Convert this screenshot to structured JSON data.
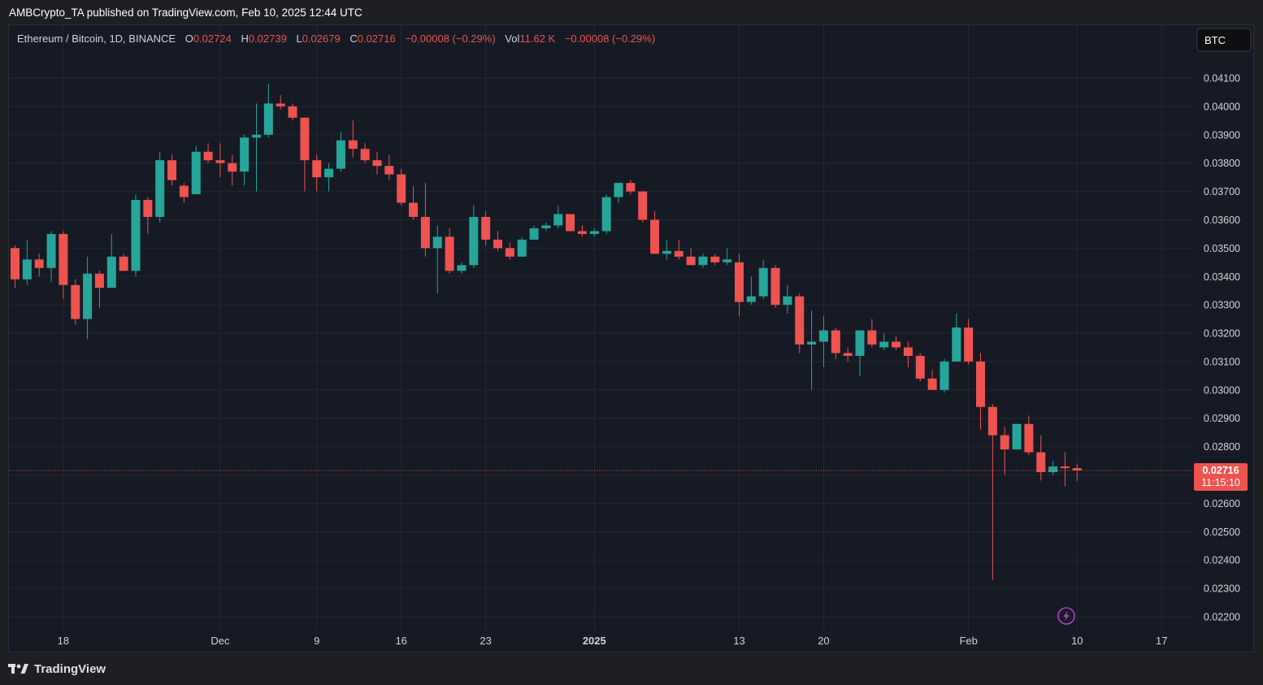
{
  "header": {
    "published": "AMBCrypto_TA published on TradingView.com, Feb 10, 2025 12:44 UTC"
  },
  "legend": {
    "symbol": "Ethereum / Bitcoin, 1D, BINANCE",
    "o_label": "O",
    "o_value": "0.02724",
    "h_label": "H",
    "h_value": "0.02739",
    "l_label": "L",
    "l_value": "0.02679",
    "c_label": "C",
    "c_value": "0.02716",
    "change": "−0.00008 (−0.29%)",
    "vol_label": "Vol",
    "vol_value": "11.62 K",
    "vol_change": "−0.00008 (−0.29%)"
  },
  "currency_button": "BTC",
  "price_label": {
    "price": "0.02716",
    "countdown": "11:15:10"
  },
  "footer": {
    "brand": "TradingView"
  },
  "colors": {
    "up": "#26a69a",
    "down": "#ef5350",
    "background": "#161a25",
    "grid": "#242834",
    "axis_text": "#d1d4dc",
    "alert_icon": "#b03fce"
  },
  "chart_data": {
    "type": "candlestick",
    "title": "Ethereum / Bitcoin, 1D, BINANCE",
    "ylim": [
      0.0218,
      0.042
    ],
    "y_ticks": [
      "0.02200",
      "0.02300",
      "0.02400",
      "0.02500",
      "0.02600",
      "0.02700",
      "0.02800",
      "0.02900",
      "0.03000",
      "0.03100",
      "0.03200",
      "0.03300",
      "0.03400",
      "0.03500",
      "0.03600",
      "0.03700",
      "0.03800",
      "0.03900",
      "0.04000",
      "0.04100"
    ],
    "x_ticks": [
      {
        "label": "18",
        "date": "2024-11-18"
      },
      {
        "label": "Dec",
        "date": "2024-12-01"
      },
      {
        "label": "9",
        "date": "2024-12-09"
      },
      {
        "label": "16",
        "date": "2024-12-16"
      },
      {
        "label": "23",
        "date": "2024-12-23"
      },
      {
        "label": "2025",
        "date": "2025-01-01"
      },
      {
        "label": "13",
        "date": "2025-01-13"
      },
      {
        "label": "20",
        "date": "2025-01-20"
      },
      {
        "label": "Feb",
        "date": "2025-02-01"
      },
      {
        "label": "10",
        "date": "2025-02-10"
      },
      {
        "label": "17",
        "date": "2025-02-17"
      }
    ],
    "x_range": [
      "2024-11-14",
      "2025-02-24"
    ],
    "last_price": 0.02716,
    "candles": [
      {
        "date": "2024-11-14",
        "o": 0.035,
        "h": 0.0351,
        "l": 0.0336,
        "c": 0.0339
      },
      {
        "date": "2024-11-15",
        "o": 0.0339,
        "h": 0.0353,
        "l": 0.0337,
        "c": 0.0346
      },
      {
        "date": "2024-11-16",
        "o": 0.0346,
        "h": 0.0348,
        "l": 0.034,
        "c": 0.0343
      },
      {
        "date": "2024-11-17",
        "o": 0.0343,
        "h": 0.0356,
        "l": 0.0338,
        "c": 0.0355
      },
      {
        "date": "2024-11-18",
        "o": 0.0355,
        "h": 0.0356,
        "l": 0.0332,
        "c": 0.0337
      },
      {
        "date": "2024-11-19",
        "o": 0.0337,
        "h": 0.0339,
        "l": 0.0323,
        "c": 0.0325
      },
      {
        "date": "2024-11-20",
        "o": 0.0325,
        "h": 0.0347,
        "l": 0.0318,
        "c": 0.0341
      },
      {
        "date": "2024-11-21",
        "o": 0.0341,
        "h": 0.0342,
        "l": 0.0329,
        "c": 0.0336
      },
      {
        "date": "2024-11-22",
        "o": 0.0336,
        "h": 0.0355,
        "l": 0.0336,
        "c": 0.0347
      },
      {
        "date": "2024-11-23",
        "o": 0.0347,
        "h": 0.0348,
        "l": 0.0342,
        "c": 0.0342
      },
      {
        "date": "2024-11-24",
        "o": 0.0342,
        "h": 0.0369,
        "l": 0.034,
        "c": 0.0367
      },
      {
        "date": "2024-11-25",
        "o": 0.0367,
        "h": 0.0368,
        "l": 0.0355,
        "c": 0.0361
      },
      {
        "date": "2024-11-26",
        "o": 0.0361,
        "h": 0.0384,
        "l": 0.0359,
        "c": 0.0381
      },
      {
        "date": "2024-11-27",
        "o": 0.0381,
        "h": 0.0383,
        "l": 0.0372,
        "c": 0.0374
      },
      {
        "date": "2024-11-28",
        "o": 0.0372,
        "h": 0.0373,
        "l": 0.0366,
        "c": 0.0368
      },
      {
        "date": "2024-11-29",
        "o": 0.0369,
        "h": 0.0386,
        "l": 0.0369,
        "c": 0.0384
      },
      {
        "date": "2024-11-30",
        "o": 0.0384,
        "h": 0.0387,
        "l": 0.038,
        "c": 0.0381
      },
      {
        "date": "2024-12-01",
        "o": 0.0381,
        "h": 0.0387,
        "l": 0.0375,
        "c": 0.038
      },
      {
        "date": "2024-12-02",
        "o": 0.038,
        "h": 0.0383,
        "l": 0.0372,
        "c": 0.0377
      },
      {
        "date": "2024-12-03",
        "o": 0.0377,
        "h": 0.039,
        "l": 0.0372,
        "c": 0.0389
      },
      {
        "date": "2024-12-04",
        "o": 0.0389,
        "h": 0.0401,
        "l": 0.037,
        "c": 0.039
      },
      {
        "date": "2024-12-05",
        "o": 0.039,
        "h": 0.0408,
        "l": 0.0389,
        "c": 0.0401
      },
      {
        "date": "2024-12-06",
        "o": 0.0401,
        "h": 0.0404,
        "l": 0.0399,
        "c": 0.04
      },
      {
        "date": "2024-12-07",
        "o": 0.04,
        "h": 0.0401,
        "l": 0.0395,
        "c": 0.0396
      },
      {
        "date": "2024-12-08",
        "o": 0.0396,
        "h": 0.0396,
        "l": 0.037,
        "c": 0.0381
      },
      {
        "date": "2024-12-09",
        "o": 0.0381,
        "h": 0.0383,
        "l": 0.037,
        "c": 0.0375
      },
      {
        "date": "2024-12-10",
        "o": 0.0375,
        "h": 0.038,
        "l": 0.037,
        "c": 0.0378
      },
      {
        "date": "2024-12-11",
        "o": 0.0378,
        "h": 0.0391,
        "l": 0.0377,
        "c": 0.0388
      },
      {
        "date": "2024-12-12",
        "o": 0.0388,
        "h": 0.0395,
        "l": 0.0382,
        "c": 0.0385
      },
      {
        "date": "2024-12-13",
        "o": 0.0385,
        "h": 0.0387,
        "l": 0.038,
        "c": 0.0381
      },
      {
        "date": "2024-12-14",
        "o": 0.0381,
        "h": 0.0384,
        "l": 0.0376,
        "c": 0.0379
      },
      {
        "date": "2024-12-15",
        "o": 0.0379,
        "h": 0.0383,
        "l": 0.0374,
        "c": 0.0376
      },
      {
        "date": "2024-12-16",
        "o": 0.0376,
        "h": 0.0378,
        "l": 0.0365,
        "c": 0.0366
      },
      {
        "date": "2024-12-17",
        "o": 0.0366,
        "h": 0.0372,
        "l": 0.036,
        "c": 0.0361
      },
      {
        "date": "2024-12-18",
        "o": 0.0361,
        "h": 0.0373,
        "l": 0.0347,
        "c": 0.035
      },
      {
        "date": "2024-12-19",
        "o": 0.035,
        "h": 0.0358,
        "l": 0.0334,
        "c": 0.0354
      },
      {
        "date": "2024-12-20",
        "o": 0.0354,
        "h": 0.0357,
        "l": 0.0341,
        "c": 0.0342
      },
      {
        "date": "2024-12-21",
        "o": 0.0342,
        "h": 0.0345,
        "l": 0.0341,
        "c": 0.0344
      },
      {
        "date": "2024-12-22",
        "o": 0.0344,
        "h": 0.0365,
        "l": 0.0343,
        "c": 0.0361
      },
      {
        "date": "2024-12-23",
        "o": 0.0361,
        "h": 0.0363,
        "l": 0.0351,
        "c": 0.0353
      },
      {
        "date": "2024-12-24",
        "o": 0.0353,
        "h": 0.0356,
        "l": 0.0349,
        "c": 0.035
      },
      {
        "date": "2024-12-25",
        "o": 0.035,
        "h": 0.0352,
        "l": 0.0346,
        "c": 0.0347
      },
      {
        "date": "2024-12-26",
        "o": 0.0347,
        "h": 0.0354,
        "l": 0.0347,
        "c": 0.0353
      },
      {
        "date": "2024-12-27",
        "o": 0.0353,
        "h": 0.0358,
        "l": 0.0353,
        "c": 0.0357
      },
      {
        "date": "2024-12-28",
        "o": 0.0357,
        "h": 0.0359,
        "l": 0.0356,
        "c": 0.0358
      },
      {
        "date": "2024-12-29",
        "o": 0.0358,
        "h": 0.0365,
        "l": 0.0357,
        "c": 0.0362
      },
      {
        "date": "2024-12-30",
        "o": 0.0362,
        "h": 0.0362,
        "l": 0.0356,
        "c": 0.0356
      },
      {
        "date": "2024-12-31",
        "o": 0.0356,
        "h": 0.0358,
        "l": 0.0354,
        "c": 0.0355
      },
      {
        "date": "2025-01-01",
        "o": 0.0355,
        "h": 0.0357,
        "l": 0.0354,
        "c": 0.0356
      },
      {
        "date": "2025-01-02",
        "o": 0.0356,
        "h": 0.0369,
        "l": 0.0355,
        "c": 0.0368
      },
      {
        "date": "2025-01-03",
        "o": 0.0368,
        "h": 0.0373,
        "l": 0.0366,
        "c": 0.0373
      },
      {
        "date": "2025-01-04",
        "o": 0.0373,
        "h": 0.0374,
        "l": 0.0369,
        "c": 0.037
      },
      {
        "date": "2025-01-05",
        "o": 0.037,
        "h": 0.037,
        "l": 0.0359,
        "c": 0.036
      },
      {
        "date": "2025-01-06",
        "o": 0.036,
        "h": 0.0363,
        "l": 0.0348,
        "c": 0.0348
      },
      {
        "date": "2025-01-07",
        "o": 0.0348,
        "h": 0.0353,
        "l": 0.0346,
        "c": 0.0349
      },
      {
        "date": "2025-01-08",
        "o": 0.0349,
        "h": 0.0353,
        "l": 0.0346,
        "c": 0.0347
      },
      {
        "date": "2025-01-09",
        "o": 0.0347,
        "h": 0.035,
        "l": 0.0344,
        "c": 0.0344
      },
      {
        "date": "2025-01-10",
        "o": 0.0344,
        "h": 0.0348,
        "l": 0.0343,
        "c": 0.0347
      },
      {
        "date": "2025-01-11",
        "o": 0.0347,
        "h": 0.0348,
        "l": 0.0344,
        "c": 0.0345
      },
      {
        "date": "2025-01-12",
        "o": 0.0345,
        "h": 0.035,
        "l": 0.0344,
        "c": 0.0346
      },
      {
        "date": "2025-01-13",
        "o": 0.0345,
        "h": 0.0348,
        "l": 0.0326,
        "c": 0.0331
      },
      {
        "date": "2025-01-14",
        "o": 0.0331,
        "h": 0.034,
        "l": 0.033,
        "c": 0.0333
      },
      {
        "date": "2025-01-15",
        "o": 0.0333,
        "h": 0.0346,
        "l": 0.0332,
        "c": 0.0343
      },
      {
        "date": "2025-01-16",
        "o": 0.0343,
        "h": 0.0344,
        "l": 0.0329,
        "c": 0.033
      },
      {
        "date": "2025-01-17",
        "o": 0.033,
        "h": 0.0337,
        "l": 0.0327,
        "c": 0.0333
      },
      {
        "date": "2025-01-18",
        "o": 0.0333,
        "h": 0.0334,
        "l": 0.0313,
        "c": 0.0316
      },
      {
        "date": "2025-01-19",
        "o": 0.0316,
        "h": 0.0328,
        "l": 0.03,
        "c": 0.0317
      },
      {
        "date": "2025-01-20",
        "o": 0.0317,
        "h": 0.0326,
        "l": 0.0308,
        "c": 0.0321
      },
      {
        "date": "2025-01-21",
        "o": 0.0321,
        "h": 0.0322,
        "l": 0.0311,
        "c": 0.0313
      },
      {
        "date": "2025-01-22",
        "o": 0.0313,
        "h": 0.0315,
        "l": 0.031,
        "c": 0.0312
      },
      {
        "date": "2025-01-23",
        "o": 0.0312,
        "h": 0.032,
        "l": 0.0305,
        "c": 0.0321
      },
      {
        "date": "2025-01-24",
        "o": 0.0321,
        "h": 0.0325,
        "l": 0.0315,
        "c": 0.0316
      },
      {
        "date": "2025-01-25",
        "o": 0.0315,
        "h": 0.032,
        "l": 0.0314,
        "c": 0.0317
      },
      {
        "date": "2025-01-26",
        "o": 0.0317,
        "h": 0.0319,
        "l": 0.0314,
        "c": 0.0315
      },
      {
        "date": "2025-01-27",
        "o": 0.0315,
        "h": 0.0317,
        "l": 0.0308,
        "c": 0.0312
      },
      {
        "date": "2025-01-28",
        "o": 0.0312,
        "h": 0.0313,
        "l": 0.0303,
        "c": 0.0304
      },
      {
        "date": "2025-01-29",
        "o": 0.0304,
        "h": 0.0307,
        "l": 0.03,
        "c": 0.03
      },
      {
        "date": "2025-01-30",
        "o": 0.03,
        "h": 0.0311,
        "l": 0.0299,
        "c": 0.031
      },
      {
        "date": "2025-01-31",
        "o": 0.031,
        "h": 0.0327,
        "l": 0.031,
        "c": 0.0322
      },
      {
        "date": "2025-02-01",
        "o": 0.0322,
        "h": 0.0325,
        "l": 0.0309,
        "c": 0.031
      },
      {
        "date": "2025-02-02",
        "o": 0.031,
        "h": 0.0313,
        "l": 0.0286,
        "c": 0.0294
      },
      {
        "date": "2025-02-03",
        "o": 0.0294,
        "h": 0.0295,
        "l": 0.0233,
        "c": 0.0284
      },
      {
        "date": "2025-02-04",
        "o": 0.0284,
        "h": 0.0287,
        "l": 0.027,
        "c": 0.0279
      },
      {
        "date": "2025-02-05",
        "o": 0.0279,
        "h": 0.0288,
        "l": 0.0279,
        "c": 0.0288
      },
      {
        "date": "2025-02-06",
        "o": 0.0288,
        "h": 0.0291,
        "l": 0.0277,
        "c": 0.0278
      },
      {
        "date": "2025-02-07",
        "o": 0.0278,
        "h": 0.0284,
        "l": 0.0268,
        "c": 0.0271
      },
      {
        "date": "2025-02-08",
        "o": 0.0271,
        "h": 0.0275,
        "l": 0.027,
        "c": 0.0273
      },
      {
        "date": "2025-02-09",
        "o": 0.0273,
        "h": 0.0278,
        "l": 0.0266,
        "c": 0.02724
      },
      {
        "date": "2025-02-10",
        "o": 0.02724,
        "h": 0.02739,
        "l": 0.02679,
        "c": 0.02716
      }
    ]
  }
}
